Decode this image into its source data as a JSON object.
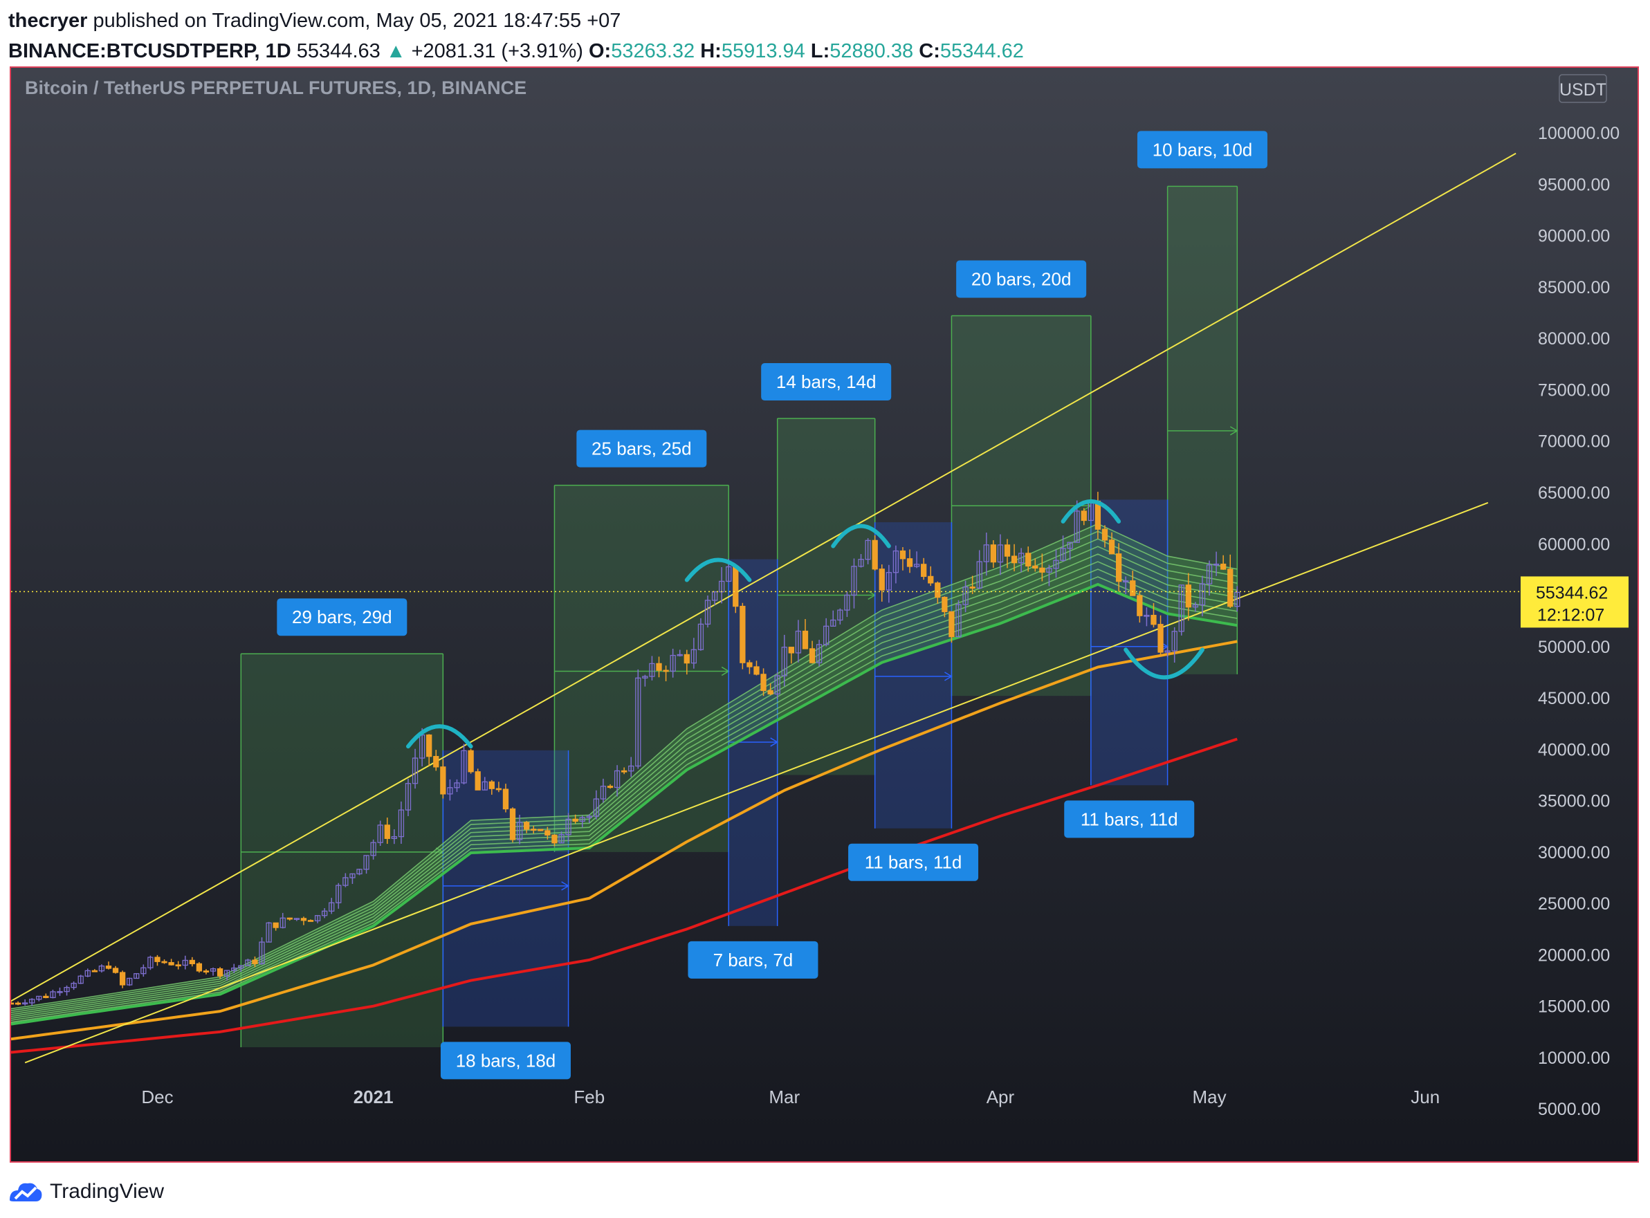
{
  "header": {
    "author": "thecryer",
    "published_text": "published on TradingView.com, May 05, 2021 18:47:55 +07",
    "symbol": "BINANCE:BTCUSDTPERP, 1D",
    "last_price": "55344.63",
    "change": "+2081.31 (+3.91%)",
    "open_label": "O:",
    "open": "53263.32",
    "high_label": "H:",
    "high": "55913.94",
    "low_label": "L:",
    "low": "52880.38",
    "close_label": "C:",
    "close": "55344.62"
  },
  "footer": {
    "brand": "TradingView"
  },
  "colors": {
    "up_candle": "#7e6fcf",
    "down_candle": "#f0a028",
    "ribbon": "#4caf50",
    "ema_orange": "#f2a31b",
    "ema_red": "#e51a1a",
    "trend": "#f2e64a",
    "arc": "#1fb3c4",
    "label_bg": "#1e88e5",
    "price_tag": "#ffeb3b"
  },
  "chart_data": {
    "type": "candlestick",
    "title": "Bitcoin / TetherUS PERPETUAL FUTURES, 1D, BINANCE",
    "currency": "USDT",
    "ylim": [
      0,
      105000
    ],
    "y_ticks": [
      100000,
      95000,
      90000,
      85000,
      80000,
      75000,
      70000,
      65000,
      60000,
      55000,
      50000,
      45000,
      40000,
      35000,
      30000,
      25000,
      20000,
      15000,
      10000,
      5000
    ],
    "y_tick_labels": [
      "100000.00",
      "95000.00",
      "90000.00",
      "85000.00",
      "80000.00",
      "75000.00",
      "70000.00",
      "65000.00",
      "60000.00",
      "55000.00",
      "50000.00",
      "45000.00",
      "40000.00",
      "35000.00",
      "30000.00",
      "25000.00",
      "20000.00",
      "15000.00",
      "10000.00",
      "5000.00"
    ],
    "x_range": [
      "2020-11-10",
      "2021-06-21"
    ],
    "x_ticks": [
      {
        "date": "2020-12-01",
        "label": "Dec",
        "bold": false
      },
      {
        "date": "2021-01-01",
        "label": "2021",
        "bold": true
      },
      {
        "date": "2021-02-01",
        "label": "Feb",
        "bold": false
      },
      {
        "date": "2021-03-01",
        "label": "Mar",
        "bold": false
      },
      {
        "date": "2021-04-01",
        "label": "Apr",
        "bold": false
      },
      {
        "date": "2021-05-01",
        "label": "May",
        "bold": false
      },
      {
        "date": "2021-06-01",
        "label": "Jun",
        "bold": false
      }
    ],
    "price_tag": {
      "value": 55344.62,
      "label": "55344.62",
      "countdown": "12:12:07"
    },
    "close_path": [
      [
        "2020-11-10",
        15300
      ],
      [
        "2020-11-15",
        16000
      ],
      [
        "2020-11-20",
        17800
      ],
      [
        "2020-11-24",
        19000
      ],
      [
        "2020-11-26",
        17000
      ],
      [
        "2020-11-30",
        19400
      ],
      [
        "2020-12-05",
        19100
      ],
      [
        "2020-12-10",
        18300
      ],
      [
        "2020-12-15",
        19400
      ],
      [
        "2020-12-17",
        22800
      ],
      [
        "2020-12-20",
        23500
      ],
      [
        "2020-12-24",
        23700
      ],
      [
        "2020-12-27",
        26500
      ],
      [
        "2020-12-30",
        28800
      ],
      [
        "2021-01-02",
        32100
      ],
      [
        "2021-01-04",
        31500
      ],
      [
        "2021-01-06",
        36800
      ],
      [
        "2021-01-08",
        40600
      ],
      [
        "2021-01-10",
        38200
      ],
      [
        "2021-01-11",
        35300
      ],
      [
        "2021-01-13",
        37400
      ],
      [
        "2021-01-14",
        39100
      ],
      [
        "2021-01-16",
        36000
      ],
      [
        "2021-01-19",
        36500
      ],
      [
        "2021-01-21",
        30800
      ],
      [
        "2021-01-22",
        33000
      ],
      [
        "2021-01-25",
        32300
      ],
      [
        "2021-01-27",
        30400
      ],
      [
        "2021-01-29",
        33700
      ],
      [
        "2021-02-01",
        33500
      ],
      [
        "2021-02-04",
        36900
      ],
      [
        "2021-02-07",
        38900
      ],
      [
        "2021-02-08",
        46400
      ],
      [
        "2021-02-11",
        48000
      ],
      [
        "2021-02-14",
        49000
      ],
      [
        "2021-02-16",
        49200
      ],
      [
        "2021-02-19",
        55900
      ],
      [
        "2021-02-21",
        57500
      ],
      [
        "2021-02-22",
        54000
      ],
      [
        "2021-02-23",
        48800
      ],
      [
        "2021-02-25",
        47000
      ],
      [
        "2021-02-27",
        46300
      ],
      [
        "2021-03-01",
        49600
      ],
      [
        "2021-03-03",
        50500
      ],
      [
        "2021-03-05",
        48800
      ],
      [
        "2021-03-08",
        52200
      ],
      [
        "2021-03-10",
        56000
      ],
      [
        "2021-03-13",
        61200
      ],
      [
        "2021-03-15",
        55700
      ],
      [
        "2021-03-17",
        58900
      ],
      [
        "2021-03-20",
        58100
      ],
      [
        "2021-03-23",
        54300
      ],
      [
        "2021-03-25",
        51400
      ],
      [
        "2021-03-27",
        55800
      ],
      [
        "2021-03-30",
        58800
      ],
      [
        "2021-04-02",
        59000
      ],
      [
        "2021-04-05",
        58800
      ],
      [
        "2021-04-08",
        58200
      ],
      [
        "2021-04-10",
        59800
      ],
      [
        "2021-04-13",
        63500
      ],
      [
        "2021-04-14",
        62900
      ],
      [
        "2021-04-16",
        61300
      ],
      [
        "2021-04-17",
        60000
      ],
      [
        "2021-04-18",
        56200
      ],
      [
        "2021-04-21",
        53800
      ],
      [
        "2021-04-23",
        51200
      ],
      [
        "2021-04-25",
        49000
      ],
      [
        "2021-04-27",
        55000
      ],
      [
        "2021-04-29",
        53500
      ],
      [
        "2021-05-01",
        57800
      ],
      [
        "2021-05-03",
        57100
      ],
      [
        "2021-05-04",
        53300
      ],
      [
        "2021-05-05",
        55344
      ]
    ],
    "ema_orange": [
      [
        "2020-11-10",
        11800
      ],
      [
        "2020-12-10",
        14500
      ],
      [
        "2021-01-01",
        19000
      ],
      [
        "2021-01-15",
        23000
      ],
      [
        "2021-02-01",
        25500
      ],
      [
        "2021-02-15",
        31000
      ],
      [
        "2021-03-01",
        36000
      ],
      [
        "2021-03-15",
        40000
      ],
      [
        "2021-04-01",
        44500
      ],
      [
        "2021-04-15",
        48000
      ],
      [
        "2021-05-05",
        50500
      ]
    ],
    "ema_red": [
      [
        "2020-11-10",
        10500
      ],
      [
        "2020-12-10",
        12500
      ],
      [
        "2021-01-01",
        15000
      ],
      [
        "2021-01-15",
        17500
      ],
      [
        "2021-02-01",
        19500
      ],
      [
        "2021-02-15",
        22500
      ],
      [
        "2021-03-01",
        26000
      ],
      [
        "2021-03-15",
        29500
      ],
      [
        "2021-04-01",
        33500
      ],
      [
        "2021-04-15",
        36500
      ],
      [
        "2021-05-05",
        41000
      ]
    ],
    "ribbon_mid": [
      [
        "2020-11-10",
        14000
      ],
      [
        "2020-12-10",
        17000
      ],
      [
        "2021-01-01",
        24000
      ],
      [
        "2021-01-15",
        31500
      ],
      [
        "2021-02-01",
        32000
      ],
      [
        "2021-02-15",
        40000
      ],
      [
        "2021-03-01",
        45500
      ],
      [
        "2021-03-15",
        51000
      ],
      [
        "2021-04-01",
        55000
      ],
      [
        "2021-04-15",
        59000
      ],
      [
        "2021-04-25",
        56000
      ],
      [
        "2021-05-05",
        54800
      ]
    ],
    "trendlines": [
      {
        "p1": [
          "2020-11-10",
          15500
        ],
        "p2": [
          "2021-06-14",
          98000
        ]
      },
      {
        "p1": [
          "2020-11-12",
          9500
        ],
        "p2": [
          "2021-06-10",
          64000
        ]
      }
    ],
    "rise_boxes": [
      {
        "from": "2020-12-13",
        "to": "2021-01-11",
        "low": 11000,
        "high": 49300,
        "mid": 30000,
        "label": "29 bars, 29d"
      },
      {
        "from": "2021-01-27",
        "to": "2021-02-21",
        "low": 30000,
        "high": 65700,
        "mid": 47600,
        "label": "25 bars, 25d"
      },
      {
        "from": "2021-02-28",
        "to": "2021-03-14",
        "low": 37500,
        "high": 72200,
        "mid": 55000,
        "label": "14 bars, 14d"
      },
      {
        "from": "2021-03-25",
        "to": "2021-04-14",
        "low": 45200,
        "high": 82200,
        "mid": 63700,
        "label": "20 bars, 20d"
      },
      {
        "from": "2021-04-25",
        "to": "2021-05-05",
        "low": 47300,
        "high": 94800,
        "mid": 71000,
        "label": "10 bars, 10d"
      }
    ],
    "fall_boxes": [
      {
        "from": "2021-01-11",
        "to": "2021-01-29",
        "low": 13000,
        "high": 39900,
        "mid": 26700,
        "label": "18 bars, 18d"
      },
      {
        "from": "2021-02-21",
        "to": "2021-02-28",
        "low": 22800,
        "high": 58500,
        "mid": 40700,
        "label": "7 bars, 7d"
      },
      {
        "from": "2021-03-14",
        "to": "2021-03-25",
        "low": 32300,
        "high": 62100,
        "mid": 47100,
        "label": "11 bars, 11d"
      },
      {
        "from": "2021-04-14",
        "to": "2021-04-25",
        "low": 36500,
        "high": 64300,
        "mid": 50000,
        "label": "11 bars, 11d"
      }
    ],
    "arcs": [
      {
        "from": "2021-01-06",
        "to": "2021-01-15",
        "peak": 42300,
        "dir": "up"
      },
      {
        "from": "2021-02-15",
        "to": "2021-02-24",
        "peak": 58500,
        "dir": "up"
      },
      {
        "from": "2021-03-08",
        "to": "2021-03-16",
        "peak": 61800,
        "dir": "up"
      },
      {
        "from": "2021-04-10",
        "to": "2021-04-18",
        "peak": 64200,
        "dir": "up"
      },
      {
        "from": "2021-04-19",
        "to": "2021-04-30",
        "peak": 47000,
        "dir": "down"
      }
    ]
  }
}
